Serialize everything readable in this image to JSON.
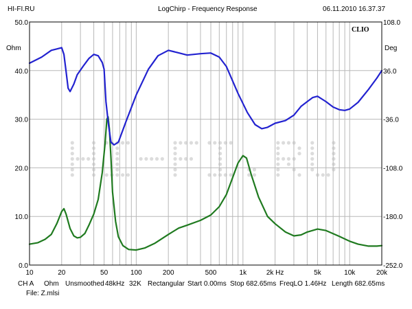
{
  "header": {
    "left": "HI-FI.RU",
    "center": "LogChirp - Frequency Response",
    "right": "06.11.2010 16.37.37"
  },
  "brand_mark": "CLIO",
  "watermark": "HI-FI.RU",
  "footer": {
    "settings": [
      "CH A",
      "Ohm",
      "Unsmoothed",
      "48kHz",
      "32K",
      "Rectangular",
      "Start 0.00ms",
      "Stop 682.65ms",
      "FreqLO 1.46Hz",
      "Length 682.65ms"
    ],
    "file": "File: Z.mlsi"
  },
  "colors": {
    "impedance": "#2222d0",
    "phase": "#1f7a1f",
    "grid": "#b8b8b8",
    "frame": "#000000",
    "watermark": "#dcdcdc"
  },
  "chart_data": {
    "type": "line",
    "title": "LogChirp - Frequency Response",
    "x_scale": "log",
    "xlim": [
      10,
      20000
    ],
    "x_ticks": [
      "10",
      "20",
      "50",
      "100",
      "200",
      "500",
      "1k",
      "2k Hz",
      "5k",
      "10k",
      "20k"
    ],
    "x_tick_values": [
      10,
      20,
      50,
      100,
      200,
      500,
      1000,
      2000,
      5000,
      10000,
      20000
    ],
    "left_axis": {
      "unit": "Ohm",
      "ylim": [
        0,
        50
      ],
      "ticks": [
        "0.0",
        "10.0",
        "20.0",
        "30.0",
        "40.0",
        "50.0"
      ],
      "tick_values": [
        0,
        10,
        20,
        30,
        40,
        50
      ]
    },
    "right_axis": {
      "unit": "Deg",
      "ylim": [
        -252,
        108
      ],
      "ticks": [
        "108.0",
        "36.0",
        "-36.0",
        "-108.0",
        "-180.0",
        "-252.0"
      ],
      "tick_values": [
        108,
        36,
        -36,
        -108,
        -180,
        -252
      ]
    },
    "grid": true,
    "series": [
      {
        "axis": "left",
        "color": "#1f7a1f",
        "points": [
          [
            10,
            4.3
          ],
          [
            12,
            4.6
          ],
          [
            14,
            5.3
          ],
          [
            16,
            6.3
          ],
          [
            18,
            8.5
          ],
          [
            20,
            11
          ],
          [
            21,
            11.6
          ],
          [
            22,
            10.5
          ],
          [
            24,
            7.5
          ],
          [
            26,
            6
          ],
          [
            28,
            5.6
          ],
          [
            30,
            5.7
          ],
          [
            33,
            6.5
          ],
          [
            36,
            8.2
          ],
          [
            40,
            10.5
          ],
          [
            44,
            13.5
          ],
          [
            48,
            19
          ],
          [
            51,
            25
          ],
          [
            53,
            30
          ],
          [
            54.5,
            30.5
          ],
          [
            56,
            28
          ],
          [
            58,
            22
          ],
          [
            60,
            15
          ],
          [
            64,
            9
          ],
          [
            68,
            5.8
          ],
          [
            75,
            4
          ],
          [
            85,
            3.2
          ],
          [
            100,
            3.1
          ],
          [
            120,
            3.5
          ],
          [
            150,
            4.5
          ],
          [
            200,
            6.3
          ],
          [
            250,
            7.6
          ],
          [
            300,
            8.2
          ],
          [
            400,
            9.2
          ],
          [
            500,
            10.3
          ],
          [
            600,
            12
          ],
          [
            700,
            14.5
          ],
          [
            800,
            18
          ],
          [
            900,
            21
          ],
          [
            1000,
            22.5
          ],
          [
            1080,
            22
          ],
          [
            1200,
            18.5
          ],
          [
            1400,
            14
          ],
          [
            1700,
            10
          ],
          [
            2000,
            8.5
          ],
          [
            2500,
            6.8
          ],
          [
            3000,
            6
          ],
          [
            3500,
            6.2
          ],
          [
            4000,
            6.8
          ],
          [
            5000,
            7.4
          ],
          [
            6000,
            7.1
          ],
          [
            8000,
            5.9
          ],
          [
            10000,
            4.9
          ],
          [
            12000,
            4.3
          ],
          [
            15000,
            3.9
          ],
          [
            18000,
            3.9
          ],
          [
            20000,
            4
          ]
        ]
      },
      {
        "axis": "right",
        "color": "#2222d0",
        "points": [
          [
            10,
            47
          ],
          [
            13,
            56
          ],
          [
            16,
            66
          ],
          [
            18,
            68
          ],
          [
            20,
            70
          ],
          [
            21,
            60
          ],
          [
            22,
            35
          ],
          [
            23,
            10
          ],
          [
            24,
            5
          ],
          [
            26,
            16
          ],
          [
            28,
            30
          ],
          [
            32,
            43
          ],
          [
            36,
            54
          ],
          [
            40,
            60
          ],
          [
            44,
            58
          ],
          [
            48,
            48
          ],
          [
            50,
            38
          ],
          [
            52,
            -10
          ],
          [
            55,
            -45
          ],
          [
            58,
            -70
          ],
          [
            62,
            -74
          ],
          [
            68,
            -70
          ],
          [
            80,
            -40
          ],
          [
            100,
            0
          ],
          [
            130,
            38
          ],
          [
            160,
            58
          ],
          [
            200,
            66
          ],
          [
            240,
            63
          ],
          [
            300,
            59
          ],
          [
            400,
            61
          ],
          [
            500,
            62
          ],
          [
            600,
            56
          ],
          [
            700,
            42
          ],
          [
            900,
            2
          ],
          [
            1100,
            -26
          ],
          [
            1300,
            -44
          ],
          [
            1500,
            -50
          ],
          [
            1700,
            -48
          ],
          [
            2000,
            -42
          ],
          [
            2500,
            -38
          ],
          [
            3000,
            -30
          ],
          [
            3500,
            -17
          ],
          [
            4000,
            -10
          ],
          [
            4500,
            -4
          ],
          [
            5000,
            -2
          ],
          [
            6000,
            -10
          ],
          [
            7000,
            -18
          ],
          [
            8000,
            -22
          ],
          [
            9000,
            -23
          ],
          [
            10000,
            -21
          ],
          [
            12000,
            -11
          ],
          [
            15000,
            8
          ],
          [
            18000,
            25
          ],
          [
            20000,
            36
          ]
        ]
      }
    ]
  }
}
